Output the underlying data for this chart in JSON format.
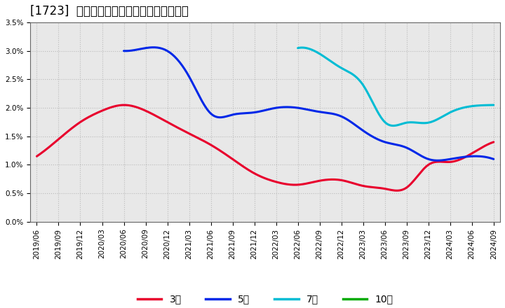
{
  "title": "[1723]  経常利益マージンの標準偏差の推移",
  "ylim": [
    0.0,
    0.035
  ],
  "yticks": [
    0.0,
    0.005,
    0.01,
    0.015,
    0.02,
    0.025,
    0.03,
    0.035
  ],
  "ytick_labels": [
    "0.0%",
    "0.5%",
    "1.0%",
    "1.5%",
    "2.0%",
    "2.5%",
    "3.0%",
    "3.5%"
  ],
  "x_labels": [
    "2019/06",
    "2019/09",
    "2019/12",
    "2020/03",
    "2020/06",
    "2020/09",
    "2020/12",
    "2021/03",
    "2021/06",
    "2021/09",
    "2021/12",
    "2022/03",
    "2022/06",
    "2022/09",
    "2022/12",
    "2023/03",
    "2023/06",
    "2023/09",
    "2023/12",
    "2024/03",
    "2024/06",
    "2024/09"
  ],
  "series": {
    "3年": {
      "color": "#e8002d",
      "linewidth": 2.2,
      "values": [
        0.0115,
        0.0145,
        0.0175,
        0.0195,
        0.0205,
        0.0195,
        0.0175,
        0.0155,
        0.0135,
        0.011,
        0.0085,
        0.007,
        0.0065,
        0.0072,
        0.0073,
        0.0063,
        0.0058,
        0.006,
        0.01,
        0.0105,
        0.012,
        0.014
      ]
    },
    "5年": {
      "color": "#0028e8",
      "linewidth": 2.2,
      "values": [
        null,
        null,
        null,
        null,
        0.03,
        0.0305,
        0.03,
        0.0255,
        0.019,
        0.0188,
        0.0192,
        0.02,
        0.02,
        0.0193,
        0.0185,
        0.016,
        0.014,
        0.013,
        0.011,
        0.011,
        0.0115,
        0.011
      ]
    },
    "7年": {
      "color": "#00bcd4",
      "linewidth": 2.2,
      "values": [
        null,
        null,
        null,
        null,
        null,
        null,
        null,
        null,
        null,
        null,
        null,
        null,
        0.0305,
        0.0295,
        0.027,
        0.024,
        0.0175,
        0.0174,
        0.0174,
        0.0192,
        0.0203,
        0.0205
      ]
    },
    "10年": {
      "color": "#00aa00",
      "linewidth": 2.2,
      "values": [
        null,
        null,
        null,
        null,
        null,
        null,
        null,
        null,
        null,
        null,
        null,
        null,
        null,
        null,
        null,
        null,
        null,
        null,
        null,
        null,
        null,
        null
      ]
    }
  },
  "legend_labels": [
    "3年",
    "5年",
    "7年",
    "10年"
  ],
  "legend_colors": [
    "#e8002d",
    "#0028e8",
    "#00bcd4",
    "#00aa00"
  ],
  "background_color": "#e8e8e8",
  "grid_color": "#bbbbbb",
  "title_fontsize": 12,
  "tick_fontsize": 7.5
}
